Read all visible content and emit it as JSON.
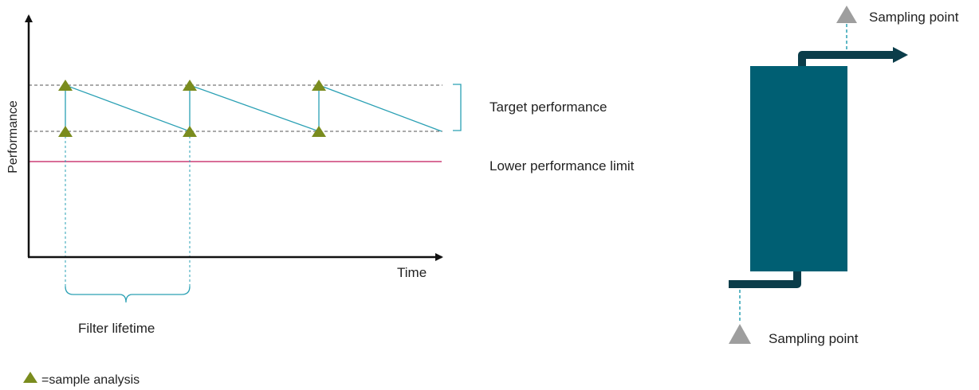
{
  "colors": {
    "axis": "#111111",
    "sawtooth": "#2aa0b4",
    "dashed": "#555555",
    "lower_limit": "#c2185b",
    "marker": "#7a8c1e",
    "bracket": "#2aa0b4",
    "column": "#005f73",
    "pipe": "#0b3d4a",
    "sampling_marker": "#9e9e9e",
    "sampling_line": "#2aa0b4"
  },
  "chart": {
    "y_axis_label": "Performance",
    "x_axis_label": "Time",
    "target_label": "Target performance",
    "lower_limit_label": "Lower performance limit",
    "lifetime_label": "Filter lifetime"
  },
  "legend": {
    "marker_icon": "triangle-icon",
    "text": "=sample analysis"
  },
  "filter_column": {
    "outlet_label": "Sampling point",
    "inlet_label": "Sampling point"
  }
}
